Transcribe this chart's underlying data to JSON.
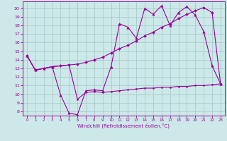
{
  "xlabel": "Windchill (Refroidissement éolien,°C)",
  "bg_color": "#cce8e8",
  "grid_color": "#aacccc",
  "line_color": "#990099",
  "x_ticks": [
    0,
    1,
    2,
    3,
    4,
    5,
    6,
    7,
    8,
    9,
    10,
    11,
    12,
    13,
    14,
    15,
    16,
    17,
    18,
    19,
    20,
    21,
    22,
    23
  ],
  "y_ticks": [
    8,
    9,
    10,
    11,
    12,
    13,
    14,
    15,
    16,
    17,
    18,
    19,
    20
  ],
  "xlim": [
    -0.5,
    23.5
  ],
  "ylim": [
    7.5,
    20.8
  ],
  "line1_x": [
    0,
    1,
    2,
    3,
    4,
    5,
    6,
    7,
    8,
    9,
    10,
    11,
    12,
    13,
    14,
    15,
    16,
    17,
    18,
    19,
    20,
    21,
    22,
    23
  ],
  "line1_y": [
    14.5,
    12.8,
    13.0,
    13.2,
    9.9,
    7.8,
    7.6,
    10.4,
    10.5,
    10.4,
    13.2,
    18.2,
    17.8,
    16.5,
    20.0,
    19.3,
    20.3,
    18.0,
    19.5,
    20.2,
    19.2,
    17.3,
    13.3,
    11.2
  ],
  "line2_x": [
    0,
    1,
    2,
    3,
    4,
    5,
    6,
    7,
    8,
    9,
    10,
    11,
    12,
    13,
    14,
    15,
    16,
    17,
    18,
    19,
    20,
    21,
    22,
    23
  ],
  "line2_y": [
    14.5,
    12.8,
    13.0,
    13.2,
    13.3,
    13.4,
    13.5,
    13.7,
    14.0,
    14.3,
    14.8,
    15.3,
    15.7,
    16.2,
    16.8,
    17.2,
    17.8,
    18.2,
    18.8,
    19.3,
    19.7,
    20.1,
    19.5,
    11.2
  ],
  "line3_x": [
    0,
    1,
    2,
    3,
    4,
    5,
    6,
    7,
    8,
    9,
    10,
    11,
    12,
    13,
    14,
    15,
    16,
    17,
    18,
    19,
    20,
    21,
    22,
    23
  ],
  "line3_y": [
    14.5,
    12.8,
    13.0,
    13.2,
    13.3,
    13.4,
    9.4,
    10.2,
    10.3,
    10.2,
    10.3,
    10.4,
    10.5,
    10.6,
    10.7,
    10.7,
    10.8,
    10.8,
    10.9,
    10.9,
    11.0,
    11.0,
    11.1,
    11.2
  ]
}
